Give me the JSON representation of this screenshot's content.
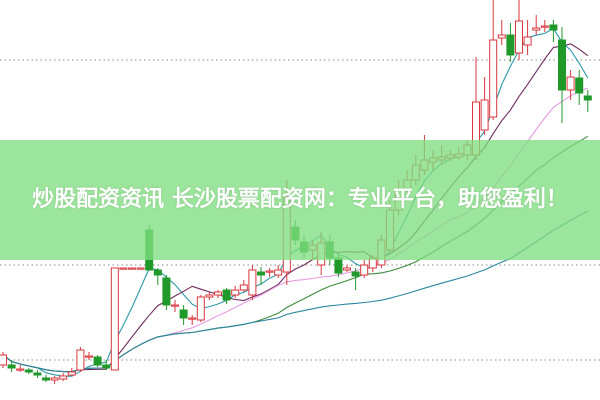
{
  "banner": {
    "text": "炒股配资资讯 长沙股票配资网：专业平台，助您盈利！"
  },
  "chart_data": {
    "type": "candlestick",
    "title": "",
    "xlabel": "",
    "ylabel": "",
    "note_units": "relative price, no axis printed",
    "ylim": [
      0,
      40
    ],
    "grid": "dotted horizontal",
    "colors": {
      "up": "#d9363e",
      "down": "#1f9a2a",
      "ma5": "#2a9aa8",
      "ma10": "#6e2a5e",
      "ma20": "#e79be0",
      "ma30": "#3d8a3d",
      "ma60": "#2a86a0",
      "banner": "#80de80"
    },
    "candles": [
      [
        3.5,
        4.5,
        4.8,
        3.2
      ],
      [
        3.5,
        3.2,
        4.0,
        2.8
      ],
      [
        3.0,
        3.1,
        3.5,
        2.8
      ],
      [
        3.0,
        2.8,
        3.2,
        2.6
      ],
      [
        2.7,
        2.5,
        3.0,
        2.2
      ],
      [
        2.2,
        2.0,
        2.5,
        1.8
      ],
      [
        2.0,
        2.2,
        2.4,
        1.6
      ],
      [
        2.1,
        2.4,
        2.7,
        1.9
      ],
      [
        2.5,
        2.8,
        3.2,
        2.4
      ],
      [
        3.0,
        5.0,
        5.3,
        2.8
      ],
      [
        4.3,
        4.4,
        4.8,
        4.0
      ],
      [
        4.3,
        3.5,
        4.5,
        3.3
      ],
      [
        3.5,
        3.2,
        4.0,
        3.0
      ],
      [
        3.0,
        13.2,
        13.2,
        3.0
      ],
      [
        13.2,
        13.2,
        13.2,
        13.2
      ],
      [
        13.2,
        13.2,
        13.2,
        13.2
      ],
      [
        13.2,
        13.2,
        13.2,
        13.2
      ],
      [
        17.0,
        13.0,
        17.5,
        12.9
      ],
      [
        13.0,
        12.5,
        13.2,
        11.5
      ],
      [
        12.2,
        9.5,
        12.5,
        9.0
      ],
      [
        9.5,
        9.5,
        10.0,
        8.8
      ],
      [
        9.0,
        8.2,
        9.5,
        7.5
      ],
      [
        8.2,
        8.2,
        8.5,
        7.5
      ],
      [
        8.0,
        10.3,
        10.5,
        7.8
      ],
      [
        10.3,
        10.5,
        10.8,
        10.0
      ],
      [
        10.5,
        10.8,
        11.0,
        10.2
      ],
      [
        11.0,
        10.0,
        11.2,
        9.6
      ],
      [
        10.5,
        11.0,
        11.4,
        10.2
      ],
      [
        11.0,
        11.5,
        12.0,
        10.8
      ],
      [
        10.5,
        13.0,
        13.5,
        10.0
      ],
      [
        12.8,
        12.5,
        13.3,
        11.5
      ],
      [
        12.8,
        12.9,
        13.2,
        12.3
      ],
      [
        12.5,
        13.0,
        13.5,
        12.2
      ],
      [
        12.8,
        20.3,
        22.0,
        11.5
      ],
      [
        17.3,
        16.0,
        18.0,
        15.5
      ],
      [
        15.8,
        14.8,
        16.5,
        14.2
      ],
      [
        15.0,
        15.5,
        16.0,
        14.0
      ],
      [
        13.5,
        15.7,
        16.8,
        12.5
      ],
      [
        15.8,
        14.2,
        16.5,
        13.5
      ],
      [
        14.2,
        12.7,
        14.8,
        12.3
      ],
      [
        13.0,
        13.2,
        13.5,
        12.8
      ],
      [
        12.8,
        12.4,
        13.2,
        11.0
      ],
      [
        12.5,
        13.5,
        14.0,
        12.2
      ],
      [
        13.2,
        14.2,
        14.5,
        12.8
      ],
      [
        13.5,
        16.0,
        16.5,
        13.2
      ],
      [
        15.0,
        19.0,
        20.0,
        14.5
      ],
      [
        19.0,
        21.0,
        22.0,
        18.5
      ],
      [
        21.0,
        22.0,
        23.0,
        20.5
      ],
      [
        22.0,
        23.5,
        24.5,
        21.5
      ],
      [
        23.0,
        24.0,
        26.5,
        22.5
      ],
      [
        23.8,
        24.2,
        25.0,
        23.0
      ],
      [
        24.0,
        24.3,
        25.5,
        23.5
      ],
      [
        24.2,
        24.5,
        25.0,
        23.8
      ],
      [
        24.3,
        24.6,
        25.3,
        24.0
      ],
      [
        24.5,
        25.5,
        26.0,
        24.0
      ],
      [
        24.5,
        29.8,
        34.3,
        24.0
      ],
      [
        27.0,
        30.0,
        32.3,
        26.5
      ],
      [
        28.3,
        36.0,
        40.0,
        28.0
      ],
      [
        36.2,
        36.5,
        38.0,
        35.5
      ],
      [
        36.5,
        34.5,
        37.7,
        33.8
      ],
      [
        34.7,
        37.9,
        40.0,
        34.0
      ],
      [
        35.5,
        36.3,
        38.0,
        34.5
      ],
      [
        37.0,
        37.2,
        38.5,
        36.5
      ],
      [
        37.3,
        37.4,
        38.0,
        36.8
      ],
      [
        37.5,
        37.0,
        38.0,
        35.8
      ],
      [
        36.0,
        31.0,
        37.3,
        27.7
      ],
      [
        31.0,
        32.3,
        33.0,
        30.0
      ],
      [
        32.2,
        30.7,
        33.0,
        29.5
      ],
      [
        30.4,
        30.0,
        31.0,
        28.8
      ]
    ],
    "moving_averages": [
      5,
      10,
      20,
      30,
      60
    ]
  }
}
